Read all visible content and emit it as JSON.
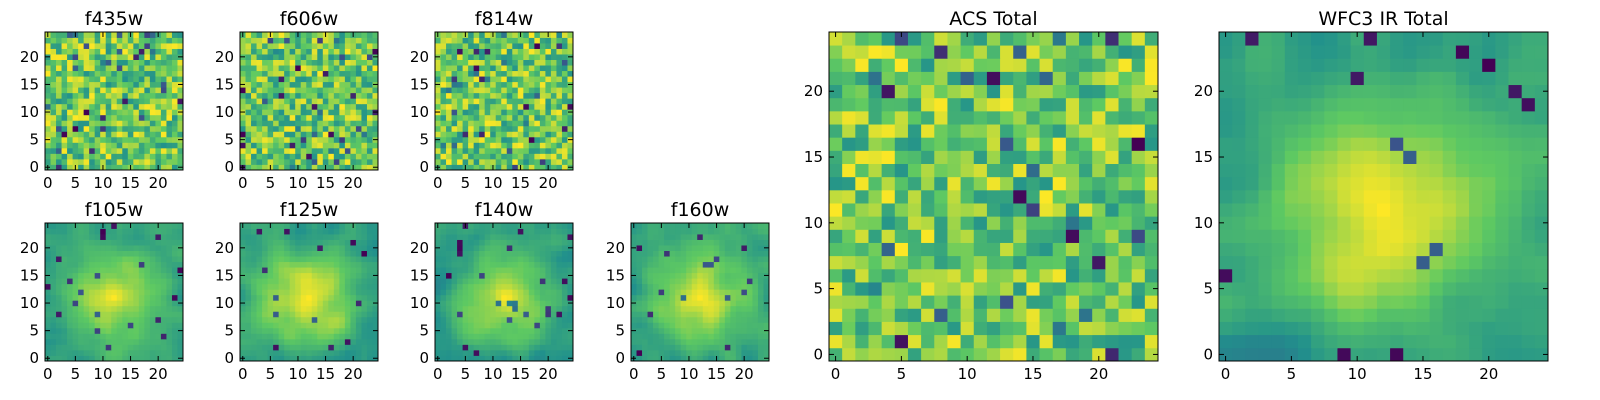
{
  "colormap": [
    "#440154",
    "#3b528b",
    "#21918c",
    "#5ec962",
    "#fde725"
  ],
  "chart_data": [
    {
      "type": "heatmap",
      "title": "f435w",
      "rows": 25,
      "cols": 25,
      "xticks": [
        0,
        5,
        10,
        15,
        20
      ],
      "yticks": [
        0,
        5,
        10,
        15,
        20
      ],
      "pattern": "noise",
      "seed": 11
    },
    {
      "type": "heatmap",
      "title": "f606w",
      "rows": 25,
      "cols": 25,
      "xticks": [
        0,
        5,
        10,
        15,
        20
      ],
      "yticks": [
        0,
        5,
        10,
        15,
        20
      ],
      "pattern": "noise",
      "seed": 23
    },
    {
      "type": "heatmap",
      "title": "f814w",
      "rows": 25,
      "cols": 25,
      "xticks": [
        0,
        5,
        10,
        15,
        20
      ],
      "yticks": [
        0,
        5,
        10,
        15,
        20
      ],
      "pattern": "noise",
      "seed": 37
    },
    {
      "type": "heatmap",
      "title": "f105w",
      "rows": 25,
      "cols": 25,
      "xticks": [
        0,
        5,
        10,
        15,
        20
      ],
      "yticks": [
        0,
        5,
        10,
        15,
        20
      ],
      "pattern": "smooth",
      "seed": 41
    },
    {
      "type": "heatmap",
      "title": "f125w",
      "rows": 25,
      "cols": 25,
      "xticks": [
        0,
        5,
        10,
        15,
        20
      ],
      "yticks": [
        0,
        5,
        10,
        15,
        20
      ],
      "pattern": "smooth",
      "seed": 53
    },
    {
      "type": "heatmap",
      "title": "f140w",
      "rows": 25,
      "cols": 25,
      "xticks": [
        0,
        5,
        10,
        15,
        20
      ],
      "yticks": [
        0,
        5,
        10,
        15,
        20
      ],
      "pattern": "smooth",
      "seed": 67
    },
    {
      "type": "heatmap",
      "title": "f160w",
      "rows": 25,
      "cols": 25,
      "xticks": [
        0,
        5,
        10,
        15,
        20
      ],
      "yticks": [
        0,
        5,
        10,
        15,
        20
      ],
      "pattern": "smooth",
      "seed": 79
    },
    {
      "type": "heatmap",
      "title": "ACS Total",
      "rows": 25,
      "cols": 25,
      "xticks": [
        0,
        5,
        10,
        15,
        20
      ],
      "yticks": [
        0,
        5,
        10,
        15,
        20
      ],
      "pattern": "noise",
      "seed": 83
    },
    {
      "type": "heatmap",
      "title": "WFC3 IR Total",
      "rows": 25,
      "cols": 25,
      "xticks": [
        0,
        5,
        10,
        15,
        20
      ],
      "yticks": [
        0,
        5,
        10,
        15,
        20
      ],
      "pattern": "smooth",
      "seed": 97
    }
  ]
}
